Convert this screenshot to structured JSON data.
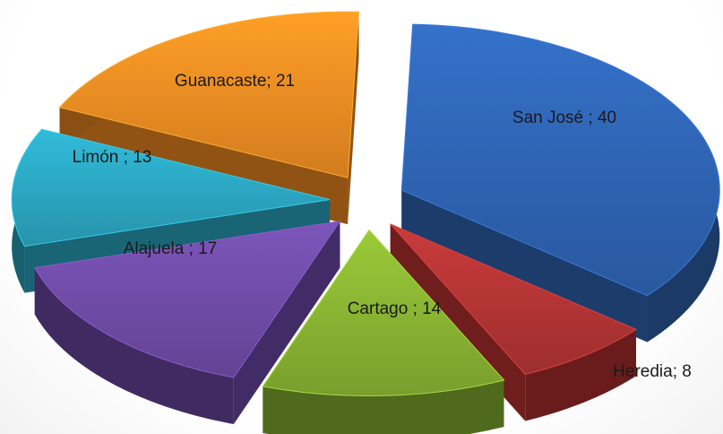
{
  "chart_data": {
    "type": "pie",
    "title": "",
    "legend": "none",
    "slices": [
      {
        "name": "San José",
        "value": 40,
        "label": "San José ; 40",
        "color": "#2e62b0",
        "side": "#1b3a66"
      },
      {
        "name": "Heredia",
        "value": 8,
        "label": "Heredia; 8",
        "color": "#b03333",
        "side": "#6a1c1c"
      },
      {
        "name": "Cartago",
        "value": 14,
        "label": "Cartago ; 14",
        "color": "#86b032",
        "side": "#4f6a1c"
      },
      {
        "name": "Alajuela",
        "value": 17,
        "label": "Alajuela ; 17",
        "color": "#6d4aa3",
        "side": "#3f2a62"
      },
      {
        "name": "Limón",
        "value": 13,
        "label": "Limón ; 13",
        "color": "#2ba3be",
        "side": "#18606f"
      },
      {
        "name": "Guanacaste",
        "value": 21,
        "label": "Guanacaste; 21",
        "color": "#e98a22",
        "side": "#8a4f12"
      }
    ]
  }
}
